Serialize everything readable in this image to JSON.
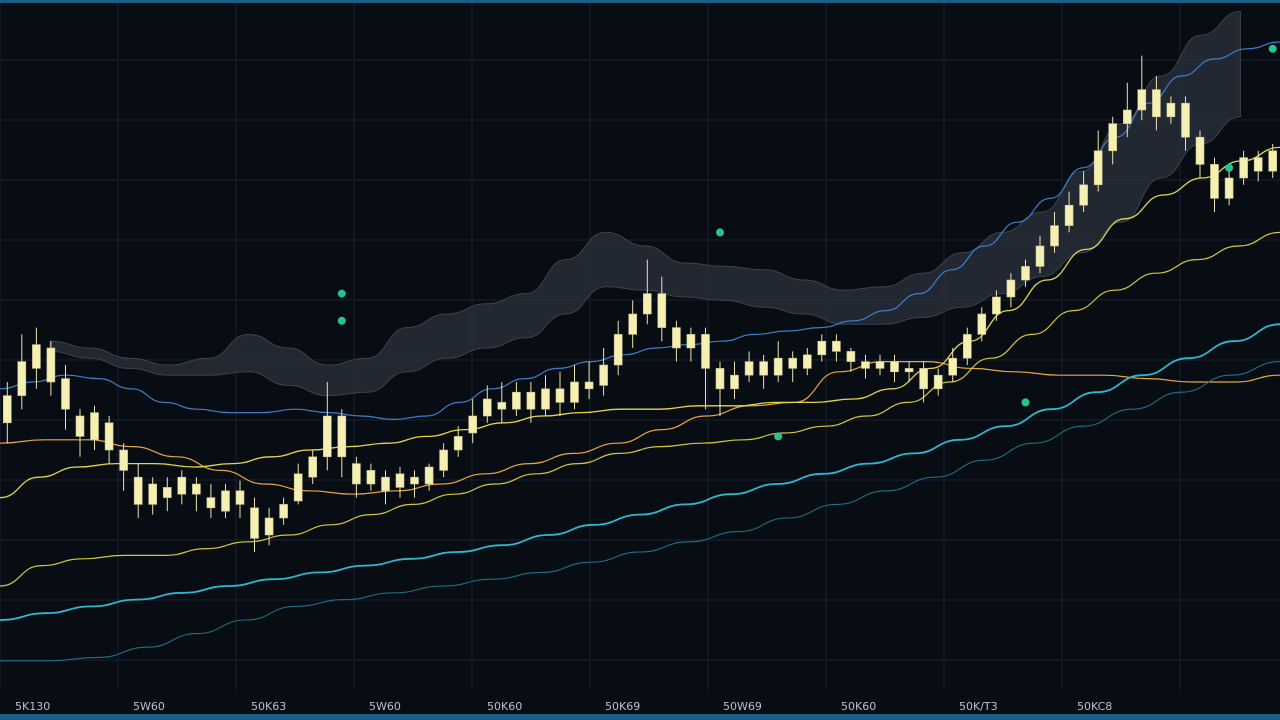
{
  "colors": {
    "background": "#080d14",
    "grid": "#17212f",
    "frame": "#1c5f86",
    "candle_body": "#f6efb4",
    "candle_wick": "#e9e3b0",
    "band_fill": "#2a323c",
    "signal_dot": "#26c28f"
  },
  "chart_data": {
    "type": "candlestick",
    "grid": true,
    "x_axis": {
      "tick_labels": [
        "5K130",
        "5W60",
        "50K63",
        "5W60",
        "50K60",
        "50K69",
        "50W69",
        "50K60",
        "50K/T3",
        "50KC8"
      ]
    },
    "y_axis": {
      "range": [
        0,
        100
      ],
      "tick_labels": []
    },
    "candles": [
      [
        39.0,
        43.0,
        36.0,
        45.0
      ],
      [
        43.0,
        48.0,
        41.0,
        52.0
      ],
      [
        47.0,
        50.5,
        44.0,
        53.0
      ],
      [
        50.0,
        45.0,
        43.0,
        51.0
      ],
      [
        45.5,
        41.0,
        38.0,
        47.5
      ],
      [
        40.0,
        37.0,
        34.0,
        41.0
      ],
      [
        36.5,
        40.5,
        35.0,
        41.5
      ],
      [
        39.0,
        35.0,
        33.0,
        40.0
      ],
      [
        35.0,
        32.0,
        29.0,
        36.0
      ],
      [
        31.0,
        27.0,
        25.0,
        33.0
      ],
      [
        27.0,
        30.0,
        25.5,
        31.0
      ],
      [
        29.5,
        28.0,
        26.0,
        31.0
      ],
      [
        28.5,
        31.0,
        27.0,
        32.0
      ],
      [
        30.0,
        28.5,
        26.0,
        31.0
      ],
      [
        28.0,
        26.5,
        25.0,
        30.0
      ],
      [
        26.0,
        29.0,
        25.0,
        30.0
      ],
      [
        29.0,
        27.0,
        25.0,
        30.5
      ],
      [
        26.5,
        22.0,
        20.0,
        28.0
      ],
      [
        22.5,
        25.0,
        21.0,
        26.5
      ],
      [
        25.0,
        27.0,
        24.0,
        28.0
      ],
      [
        27.5,
        31.5,
        27.0,
        33.0
      ],
      [
        31.0,
        34.0,
        30.0,
        35.0
      ],
      [
        34.0,
        40.0,
        32.0,
        45.0
      ],
      [
        40.0,
        34.0,
        31.0,
        41.0
      ],
      [
        33.0,
        30.0,
        28.0,
        34.0
      ],
      [
        30.0,
        32.0,
        29.0,
        33.0
      ],
      [
        31.0,
        29.0,
        27.0,
        32.0
      ],
      [
        29.5,
        31.5,
        28.0,
        32.5
      ],
      [
        31.0,
        30.0,
        28.0,
        32.0
      ],
      [
        30.0,
        32.5,
        29.0,
        33.0
      ],
      [
        32.0,
        35.0,
        31.0,
        36.0
      ],
      [
        35.0,
        37.0,
        34.0,
        38.5
      ],
      [
        37.5,
        40.0,
        36.0,
        42.5
      ],
      [
        40.0,
        42.5,
        39.0,
        44.5
      ],
      [
        42.0,
        41.0,
        39.0,
        45.0
      ],
      [
        41.0,
        43.5,
        40.0,
        45.0
      ],
      [
        43.5,
        41.0,
        39.0,
        45.0
      ],
      [
        41.0,
        44.0,
        40.0,
        46.0
      ],
      [
        44.0,
        42.0,
        40.0,
        46.5
      ],
      [
        42.0,
        45.0,
        41.0,
        47.5
      ],
      [
        45.0,
        44.0,
        42.5,
        48.0
      ],
      [
        44.5,
        47.5,
        43.0,
        50.0
      ],
      [
        47.5,
        52.0,
        46.0,
        54.0
      ],
      [
        52.0,
        55.0,
        50.0,
        57.0
      ],
      [
        55.0,
        58.0,
        53.5,
        63.0
      ],
      [
        58.0,
        53.0,
        51.0,
        60.5
      ],
      [
        53.0,
        50.0,
        48.0,
        54.0
      ],
      [
        50.0,
        52.0,
        48.0,
        53.0
      ],
      [
        52.0,
        47.0,
        41.0,
        53.0
      ],
      [
        47.0,
        44.0,
        40.0,
        48.0
      ],
      [
        44.0,
        46.0,
        42.5,
        48.0
      ],
      [
        46.0,
        48.0,
        45.0,
        49.5
      ],
      [
        48.0,
        46.0,
        44.0,
        49.0
      ],
      [
        46.0,
        48.5,
        45.0,
        51.0
      ],
      [
        48.5,
        47.0,
        45.0,
        49.5
      ],
      [
        47.0,
        49.0,
        46.0,
        50.0
      ],
      [
        49.0,
        51.0,
        48.0,
        52.0
      ],
      [
        51.0,
        49.5,
        48.0,
        52.0
      ],
      [
        49.5,
        48.0,
        46.5,
        50.0
      ],
      [
        48.0,
        47.0,
        45.5,
        49.0
      ],
      [
        47.0,
        48.0,
        46.0,
        49.0
      ],
      [
        48.0,
        46.5,
        45.0,
        49.0
      ],
      [
        46.5,
        47.0,
        45.0,
        48.0
      ],
      [
        47.0,
        44.0,
        42.0,
        48.0
      ],
      [
        44.0,
        46.0,
        43.0,
        47.0
      ],
      [
        46.0,
        48.5,
        45.0,
        50.0
      ],
      [
        48.5,
        52.0,
        47.5,
        53.0
      ],
      [
        52.0,
        55.0,
        51.0,
        56.0
      ],
      [
        55.0,
        57.5,
        54.0,
        58.5
      ],
      [
        57.5,
        60.0,
        56.0,
        61.0
      ],
      [
        60.0,
        62.0,
        59.0,
        63.0
      ],
      [
        62.0,
        65.0,
        61.0,
        66.5
      ],
      [
        65.0,
        68.0,
        64.0,
        70.0
      ],
      [
        68.0,
        71.0,
        67.0,
        73.0
      ],
      [
        71.0,
        74.0,
        70.0,
        76.0
      ],
      [
        74.0,
        79.0,
        73.0,
        82.0
      ],
      [
        79.0,
        83.0,
        77.0,
        84.0
      ],
      [
        83.0,
        85.0,
        81.0,
        89.0
      ],
      [
        85.0,
        88.0,
        83.5,
        93.0
      ],
      [
        88.0,
        84.0,
        82.0,
        90.0
      ],
      [
        84.0,
        86.0,
        83.0,
        87.0
      ],
      [
        86.0,
        81.0,
        79.0,
        87.0
      ],
      [
        81.0,
        77.0,
        75.0,
        82.0
      ],
      [
        77.0,
        72.0,
        70.0,
        78.0
      ],
      [
        72.0,
        75.0,
        71.0,
        77.0
      ],
      [
        75.0,
        78.0,
        74.0,
        79.0
      ],
      [
        78.0,
        76.0,
        74.5,
        79.0
      ],
      [
        76.0,
        79.0,
        75.0,
        80.0
      ]
    ],
    "overlay_lines": [
      {
        "color": "#3d7fc9",
        "width": 1.2,
        "values": [
          44,
          45,
          46,
          45.5,
          44,
          42,
          41,
          40.5,
          40.5,
          41,
          40.5,
          40,
          39.5,
          40,
          42,
          44,
          45.5,
          47,
          48,
          49,
          50,
          50.5,
          51,
          52,
          52.5,
          53,
          54,
          55.5,
          58,
          61.5,
          65,
          68.5,
          72,
          76.5,
          81,
          86,
          90,
          92.5,
          94,
          95
        ]
      },
      {
        "color": "#e7a742",
        "width": 1.2,
        "values": [
          36,
          36.5,
          36.5,
          35.5,
          34,
          32,
          30,
          29,
          28.5,
          29,
          30,
          31.5,
          33,
          34.5,
          36,
          38,
          40,
          41.5,
          42,
          46.5,
          48,
          48,
          47,
          46.5,
          46,
          46,
          45.5,
          45,
          45,
          46
        ]
      },
      {
        "color": "#e3d54a",
        "width": 1.3,
        "values": [
          28,
          31,
          32.5,
          33,
          33,
          32.5,
          33,
          34,
          35,
          35.5,
          36,
          37,
          38,
          39,
          40,
          40.5,
          41,
          41,
          41.5,
          41.5,
          42,
          42,
          42.5,
          44,
          47,
          51,
          55.5,
          60,
          64.5,
          69,
          72.5,
          75,
          77.5,
          79.5
        ]
      },
      {
        "color": "#d4c63f",
        "width": 1.2,
        "values": [
          15,
          18,
          19,
          19.5,
          19.5,
          20.5,
          21.5,
          22.5,
          24,
          25.5,
          27,
          28.5,
          30,
          31.5,
          33,
          34.5,
          35.5,
          36,
          36.5,
          37.5,
          38.5,
          40,
          42,
          45,
          48.5,
          52,
          55.5,
          58.5,
          61,
          63,
          65,
          67
        ]
      },
      {
        "color": "#2fb7cc",
        "width": 1.8,
        "values": [
          10,
          11,
          12,
          13,
          14,
          15,
          16,
          17,
          18,
          19,
          20,
          21,
          22.5,
          24,
          25.5,
          27,
          28.5,
          30,
          31.5,
          33,
          34.5,
          36.5,
          38.5,
          41,
          43.5,
          46,
          48.5,
          51,
          53.5
        ]
      },
      {
        "color": "#1f6f86",
        "width": 1.1,
        "values": [
          4,
          4,
          4.5,
          6,
          8,
          10,
          12,
          13,
          14,
          15,
          16,
          17,
          18.5,
          20,
          21.5,
          23,
          25,
          27,
          29,
          31,
          33.5,
          36,
          38.5,
          41,
          43.5,
          46,
          48
        ]
      }
    ],
    "band": {
      "upper": [
        51,
        50,
        48.5,
        47.5,
        48.5,
        52,
        50,
        47.5,
        48.5,
        53,
        55,
        56.5,
        58,
        63,
        67,
        65,
        62.5,
        62,
        61.5,
        60,
        58.5,
        59,
        61,
        64,
        67,
        70,
        76,
        83,
        90,
        96,
        99.5
      ],
      "lower": [
        49.5,
        48.5,
        47,
        46,
        46,
        46.5,
        44.5,
        43,
        43.5,
        46.5,
        48.5,
        50,
        51.5,
        55,
        59,
        58.5,
        57.5,
        57,
        56,
        55,
        53.5,
        53.5,
        54.5,
        56,
        58,
        60.5,
        64,
        68.5,
        75,
        80,
        84
      ]
    },
    "markers": [
      {
        "x": 23,
        "value": 58.0
      },
      {
        "x": 23,
        "value": 54.0
      },
      {
        "x": 49,
        "value": 67.0
      },
      {
        "x": 53,
        "value": 37.0
      },
      {
        "x": 70,
        "value": 42.0
      },
      {
        "x": 84,
        "value": 76.5
      },
      {
        "x": 87,
        "value": 94.0
      }
    ]
  }
}
